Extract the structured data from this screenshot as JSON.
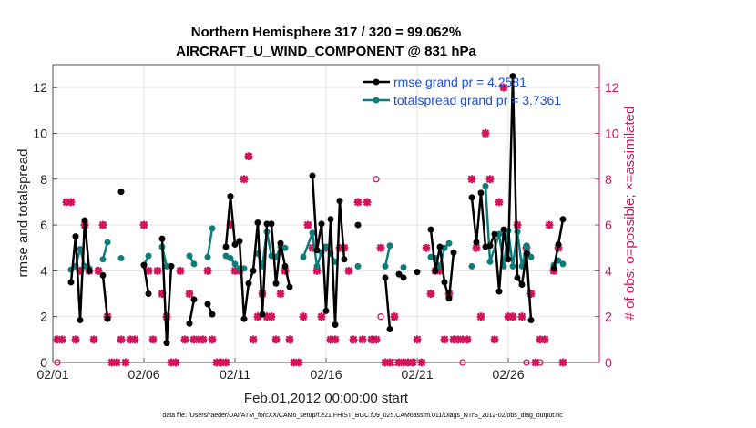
{
  "chart_data": {
    "type": "line",
    "title_line1": "Northern Hemisphere 317 / 320 = 99.062%",
    "title_line2": "AIRCRAFT_U_WIND_COMPONENT @ 831 hPa",
    "xlabel": "Feb.01,2012 00:00:00 start",
    "ylabel_left": "rmse and totalspread",
    "ylabel_right": "# of obs: o=possible; ×=assimilated",
    "footer": "data file: /Users/raeder/DAI/ATM_forcXX/CAM6_setup/f.e21.FHIST_BGC.f09_025.CAM6assim.011/Diags_NTrS_2012-02/obs_diag_output.nc",
    "xlim": [
      0,
      30
    ],
    "ylim_left": [
      0,
      13
    ],
    "ylim_right": [
      0,
      13
    ],
    "x_ticks": [
      0,
      5,
      10,
      15,
      20,
      25
    ],
    "x_tick_labels": [
      "02/01",
      "02/06",
      "02/11",
      "02/16",
      "02/21",
      "02/26"
    ],
    "y_ticks_left": [
      0,
      2,
      4,
      6,
      8,
      10,
      12
    ],
    "y_tick_labels_left": [
      "0",
      "2",
      "4",
      "6",
      "8",
      "10",
      "12"
    ],
    "y_ticks_right": [
      0,
      2,
      4,
      6,
      8,
      10,
      12
    ],
    "y_tick_labels_right": [
      "0",
      "2",
      "4",
      "6",
      "8",
      "10",
      "12"
    ],
    "legend_position": "top-right",
    "colors": {
      "rmse": "#000000",
      "spread": "#0e7c7b",
      "obs": "#d4145a",
      "legend_text": "#1f4fd8",
      "grid": "#e3e3e3"
    },
    "series": [
      {
        "name": "rmse grand pr = 4.2581",
        "segments": [
          [
            [
              1.0,
              3.5
            ],
            [
              1.25,
              5.5
            ],
            [
              1.5,
              1.85
            ],
            [
              1.75,
              6.2
            ],
            [
              2.0,
              4.0
            ]
          ],
          [
            [
              2.75,
              3.8
            ],
            [
              3.0,
              1.9
            ]
          ],
          [
            [
              3.75,
              7.45
            ]
          ],
          [
            [
              5.0,
              4.25
            ],
            [
              5.25,
              3.0
            ]
          ],
          [
            [
              6.0,
              5.4
            ],
            [
              6.25,
              0.85
            ],
            [
              6.5,
              4.2
            ]
          ],
          [
            [
              7.5,
              1.7
            ],
            [
              7.75,
              2.75
            ]
          ],
          [
            [
              8.5,
              2.55
            ],
            [
              8.75,
              2.1
            ]
          ],
          [
            [
              9.5,
              5.05
            ],
            [
              9.75,
              7.25
            ],
            [
              10.0,
              5.15
            ],
            [
              10.25,
              5.3
            ],
            [
              10.5,
              1.9
            ],
            [
              10.75,
              3.45
            ],
            [
              11.0,
              4.0
            ],
            [
              11.25,
              6.1
            ],
            [
              11.5,
              2.1
            ],
            [
              11.75,
              6.05
            ],
            [
              12.0,
              6.05
            ],
            [
              12.25,
              3.45
            ],
            [
              12.5,
              5.2
            ],
            [
              12.75,
              4.2
            ],
            [
              13.0,
              3.3
            ]
          ],
          [
            [
              14.25,
              8.15
            ],
            [
              14.5,
              4.9
            ],
            [
              14.75,
              6.05
            ],
            [
              15.0,
              2.25
            ],
            [
              15.25,
              6.25
            ],
            [
              15.5,
              1.65
            ],
            [
              15.75,
              7.05
            ],
            [
              16.0,
              4.5
            ]
          ],
          [
            [
              16.75,
              6.0
            ]
          ],
          [
            [
              18.25,
              3.7
            ],
            [
              18.5,
              1.45
            ]
          ],
          [
            [
              19.0,
              3.85
            ],
            [
              19.25,
              3.7
            ]
          ],
          [
            [
              20.0,
              3.95
            ]
          ],
          [
            [
              20.75,
              5.8
            ],
            [
              21.0,
              4.0
            ],
            [
              21.25,
              5.05
            ],
            [
              21.5,
              3.5
            ],
            [
              21.75,
              2.8
            ],
            [
              22.0,
              4.8
            ]
          ],
          [
            [
              23.0,
              7.2
            ],
            [
              23.25,
              5.25
            ],
            [
              23.5,
              7.4
            ],
            [
              23.75,
              5.05
            ],
            [
              24.0,
              5.1
            ],
            [
              24.25,
              5.6
            ],
            [
              24.5,
              3.1
            ],
            [
              24.75,
              5.8
            ],
            [
              25.0,
              4.5
            ],
            [
              25.25,
              12.5
            ],
            [
              25.5,
              3.7
            ],
            [
              25.75,
              3.4
            ],
            [
              26.0,
              4.75
            ],
            [
              26.25,
              1.85
            ]
          ],
          [
            [
              27.5,
              4.1
            ],
            [
              27.75,
              5.15
            ],
            [
              28.0,
              6.25
            ]
          ]
        ]
      },
      {
        "name": "totalspread grand pr = 3.7361",
        "segments": [
          [
            [
              1.0,
              4.05
            ],
            [
              1.25,
              4.2
            ],
            [
              1.5,
              4.95
            ],
            [
              1.75,
              4.2
            ],
            [
              2.0,
              4.1
            ]
          ],
          [
            [
              2.75,
              4.5
            ],
            [
              3.0,
              5.25
            ]
          ],
          [
            [
              3.75,
              4.55
            ]
          ],
          [
            [
              5.0,
              4.25
            ],
            [
              5.25,
              4.65
            ]
          ],
          [
            [
              6.0,
              5.05
            ],
            [
              6.25,
              4.2
            ]
          ],
          [
            [
              7.5,
              4.65
            ],
            [
              7.75,
              4.3
            ]
          ],
          [
            [
              8.5,
              4.6
            ],
            [
              8.75,
              5.85
            ]
          ],
          [
            [
              9.5,
              4.65
            ],
            [
              9.75,
              4.55
            ],
            [
              10.0,
              4.3
            ],
            [
              10.25,
              4.1
            ],
            [
              10.5,
              4.1
            ]
          ],
          [
            [
              11.25,
              4.75
            ],
            [
              11.5,
              4.2
            ],
            [
              11.75,
              5.7
            ],
            [
              12.0,
              4.65
            ],
            [
              12.25,
              4.6
            ],
            [
              12.5,
              5.05
            ],
            [
              12.75,
              5.0
            ]
          ],
          [
            [
              13.75,
              4.6
            ],
            [
              14.25,
              5.65
            ],
            [
              14.5,
              4.2
            ],
            [
              14.75,
              4.8
            ],
            [
              15.0,
              5.05
            ],
            [
              15.25,
              4.75
            ],
            [
              15.5,
              4.4
            ]
          ],
          [
            [
              16.75,
              4.2
            ]
          ],
          [
            [
              18.25,
              4.2
            ],
            [
              18.5,
              5.1
            ]
          ],
          [
            [
              19.25,
              4.15
            ]
          ],
          [
            [
              20.75,
              4.6
            ],
            [
              21.0,
              4.55
            ],
            [
              21.25,
              4.2
            ],
            [
              21.5,
              5.0
            ],
            [
              21.75,
              5.2
            ]
          ],
          [
            [
              23.0,
              4.2
            ]
          ],
          [
            [
              23.75,
              7.7
            ],
            [
              24.0,
              4.4
            ],
            [
              24.5,
              5.6
            ],
            [
              24.75,
              4.2
            ],
            [
              25.0,
              5.75
            ],
            [
              25.25,
              4.2
            ],
            [
              25.5,
              5.7
            ],
            [
              25.75,
              4.2
            ],
            [
              26.0,
              5.1
            ],
            [
              26.25,
              4.6
            ]
          ],
          [
            [
              27.5,
              4.25
            ],
            [
              27.75,
              4.45
            ],
            [
              28.0,
              4.3
            ]
          ]
        ]
      },
      {
        "name": "# obs assimilated",
        "points": [
          [
            0.25,
            1
          ],
          [
            0.5,
            1
          ],
          [
            0.75,
            7
          ],
          [
            1.0,
            7
          ],
          [
            1.25,
            1
          ],
          [
            1.5,
            4
          ],
          [
            1.75,
            6
          ],
          [
            2.0,
            4
          ],
          [
            2.25,
            1
          ],
          [
            2.5,
            4
          ],
          [
            2.75,
            6
          ],
          [
            3.0,
            2
          ],
          [
            3.25,
            0
          ],
          [
            3.5,
            0
          ],
          [
            3.75,
            1
          ],
          [
            4.0,
            0
          ],
          [
            4.25,
            1
          ],
          [
            4.5,
            1
          ],
          [
            5.0,
            6
          ],
          [
            5.25,
            4
          ],
          [
            5.5,
            1
          ],
          [
            5.75,
            4
          ],
          [
            6.0,
            3
          ],
          [
            6.25,
            2
          ],
          [
            6.5,
            0
          ],
          [
            6.75,
            0
          ],
          [
            7.0,
            4
          ],
          [
            7.25,
            1
          ],
          [
            7.5,
            3
          ],
          [
            7.75,
            1
          ],
          [
            8.0,
            1
          ],
          [
            8.25,
            1
          ],
          [
            8.5,
            4
          ],
          [
            8.75,
            1
          ],
          [
            9.0,
            0
          ],
          [
            9.25,
            0
          ],
          [
            9.5,
            0
          ],
          [
            9.75,
            6
          ],
          [
            10.0,
            4
          ],
          [
            10.25,
            4
          ],
          [
            10.5,
            8
          ],
          [
            10.75,
            9
          ],
          [
            11.0,
            1
          ],
          [
            11.25,
            2
          ],
          [
            11.5,
            3
          ],
          [
            11.75,
            2
          ],
          [
            12.0,
            2
          ],
          [
            12.25,
            1
          ],
          [
            12.5,
            3
          ],
          [
            12.75,
            4
          ],
          [
            13.0,
            1
          ],
          [
            13.25,
            0
          ],
          [
            13.5,
            0
          ],
          [
            13.75,
            2
          ],
          [
            14.0,
            6
          ],
          [
            14.25,
            5
          ],
          [
            14.5,
            4
          ],
          [
            14.75,
            2
          ],
          [
            15.0,
            5
          ],
          [
            15.25,
            1
          ],
          [
            15.5,
            1
          ],
          [
            15.75,
            5
          ],
          [
            16.0,
            5
          ],
          [
            16.25,
            4
          ],
          [
            16.5,
            1
          ],
          [
            16.75,
            7
          ],
          [
            17.0,
            1
          ],
          [
            17.25,
            7
          ],
          [
            17.5,
            1
          ],
          [
            17.75,
            1
          ],
          [
            18.0,
            5
          ],
          [
            18.25,
            0
          ],
          [
            18.5,
            0
          ],
          [
            18.75,
            2
          ],
          [
            19.0,
            0
          ],
          [
            19.25,
            0
          ],
          [
            19.5,
            0
          ],
          [
            19.75,
            0
          ],
          [
            20.0,
            1
          ],
          [
            20.25,
            0
          ],
          [
            20.5,
            5
          ],
          [
            20.75,
            3
          ],
          [
            21.0,
            4
          ],
          [
            21.25,
            4
          ],
          [
            21.5,
            1
          ],
          [
            21.75,
            3
          ],
          [
            22.0,
            1
          ],
          [
            22.25,
            1
          ],
          [
            22.5,
            1
          ],
          [
            22.75,
            1
          ],
          [
            23.0,
            8
          ],
          [
            23.25,
            5
          ],
          [
            23.5,
            2
          ],
          [
            23.75,
            10
          ],
          [
            24.0,
            8
          ],
          [
            24.25,
            1
          ],
          [
            24.5,
            7
          ],
          [
            24.75,
            12
          ],
          [
            25.0,
            2
          ],
          [
            25.25,
            2
          ],
          [
            25.5,
            6
          ],
          [
            25.75,
            2
          ],
          [
            26.0,
            5
          ],
          [
            26.25,
            3
          ],
          [
            26.5,
            0
          ],
          [
            26.75,
            1
          ],
          [
            27.0,
            1
          ],
          [
            27.25,
            6
          ],
          [
            27.5,
            4
          ],
          [
            27.75,
            5
          ],
          [
            28.0,
            0
          ]
        ]
      },
      {
        "name": "# obs possible",
        "points": [
          [
            0.25,
            0
          ],
          [
            17.75,
            8
          ],
          [
            18.0,
            2
          ],
          [
            18.75,
            0
          ],
          [
            22.5,
            0
          ],
          [
            26.0,
            0
          ],
          [
            26.75,
            0
          ]
        ]
      }
    ]
  }
}
